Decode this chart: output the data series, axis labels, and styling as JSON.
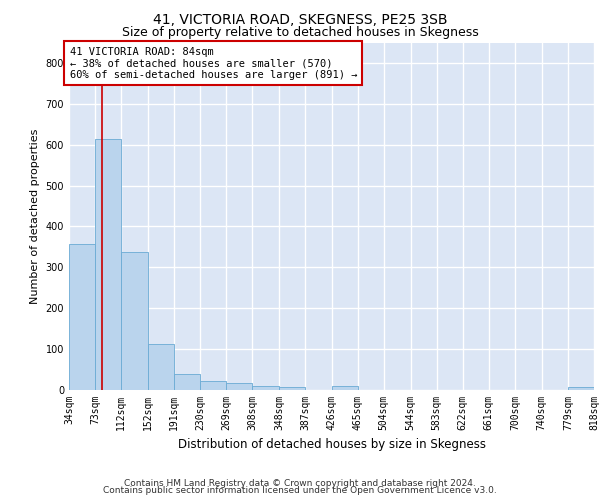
{
  "title": "41, VICTORIA ROAD, SKEGNESS, PE25 3SB",
  "subtitle": "Size of property relative to detached houses in Skegness",
  "xlabel": "Distribution of detached houses by size in Skegness",
  "ylabel": "Number of detached properties",
  "footer_line1": "Contains HM Land Registry data © Crown copyright and database right 2024.",
  "footer_line2": "Contains public sector information licensed under the Open Government Licence v3.0.",
  "bin_edges": [
    34,
    73,
    112,
    152,
    191,
    230,
    269,
    308,
    348,
    387,
    426,
    465,
    504,
    544,
    583,
    622,
    661,
    700,
    740,
    779,
    818
  ],
  "bar_heights": [
    358,
    614,
    338,
    113,
    40,
    21,
    16,
    9,
    7,
    0,
    9,
    0,
    0,
    0,
    0,
    0,
    0,
    0,
    0,
    8
  ],
  "bar_color": "#bad4ed",
  "bar_edge_color": "#6aaad4",
  "property_size": 84,
  "vline_color": "#cc0000",
  "annotation_line1": "41 VICTORIA ROAD: 84sqm",
  "annotation_line2": "← 38% of detached houses are smaller (570)",
  "annotation_line3": "60% of semi-detached houses are larger (891) →",
  "annotation_box_color": "#ffffff",
  "annotation_box_edge_color": "#cc0000",
  "ylim": [
    0,
    850
  ],
  "yticks": [
    0,
    100,
    200,
    300,
    400,
    500,
    600,
    700,
    800
  ],
  "plot_bg_color": "#dce6f5",
  "grid_color": "#ffffff",
  "title_fontsize": 10,
  "subtitle_fontsize": 9,
  "tick_fontsize": 7,
  "ylabel_fontsize": 8,
  "xlabel_fontsize": 8.5,
  "annotation_fontsize": 7.5,
  "footer_fontsize": 6.5
}
